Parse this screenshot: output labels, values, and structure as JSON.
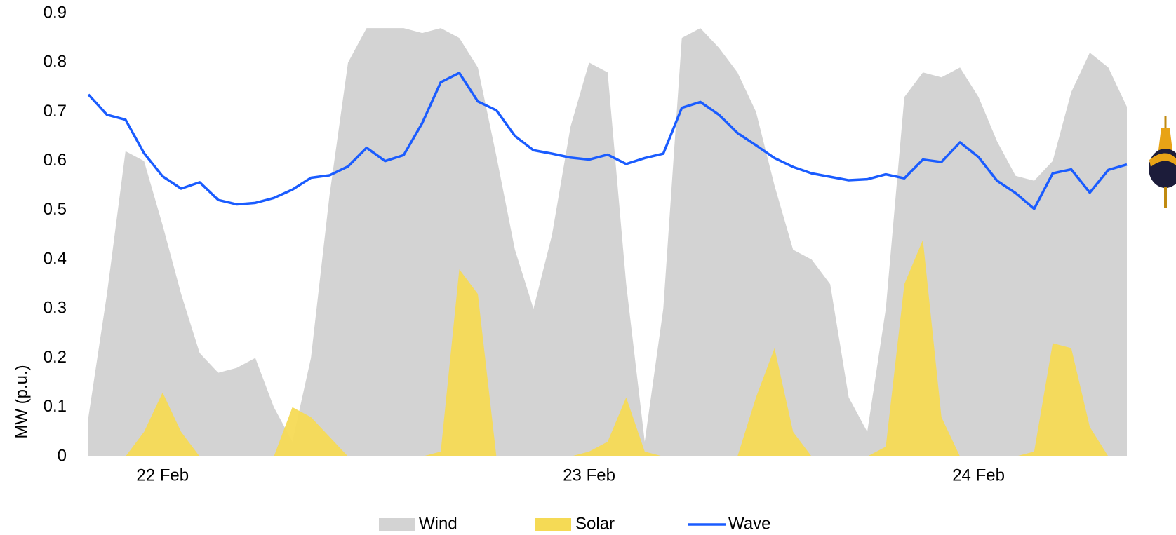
{
  "chart_data": {
    "type": "area",
    "y_label": "MW (p.u.)",
    "categories": [
      null,
      null,
      null,
      null,
      "22 Feb",
      null,
      null,
      null,
      null,
      null,
      null,
      null,
      null,
      null,
      null,
      null,
      null,
      null,
      null,
      null,
      null,
      null,
      null,
      null,
      null,
      null,
      null,
      "23 Feb",
      null,
      null,
      null,
      null,
      null,
      null,
      null,
      null,
      null,
      null,
      null,
      null,
      null,
      null,
      null,
      null,
      null,
      null,
      null,
      null,
      "24 Feb",
      null,
      null,
      null,
      null,
      null,
      null,
      null,
      null
    ],
    "ylim": [
      0,
      0.9
    ],
    "yticks": [
      0,
      0.1,
      0.2,
      0.3,
      0.4,
      0.5,
      0.6,
      0.7,
      0.8,
      0.9
    ],
    "grid": false,
    "legend": "bottom",
    "series": [
      {
        "name": "Wind",
        "color": "#d3d3d3",
        "style": "area",
        "values": [
          0.08,
          0.33,
          0.62,
          0.6,
          0.47,
          0.33,
          0.21,
          0.17,
          0.18,
          0.2,
          0.1,
          0.03,
          0.2,
          0.53,
          0.8,
          0.87,
          0.87,
          0.87,
          0.86,
          0.87,
          0.85,
          0.79,
          0.61,
          0.42,
          0.3,
          0.45,
          0.67,
          0.8,
          0.78,
          0.35,
          0.03,
          0.3,
          0.85,
          0.87,
          0.83,
          0.78,
          0.7,
          0.55,
          0.42,
          0.4,
          0.35,
          0.12,
          0.05,
          0.3,
          0.73,
          0.78,
          0.77,
          0.79,
          0.73,
          0.64,
          0.57,
          0.56,
          0.6,
          0.74,
          0.82,
          0.79,
          0.71
        ]
      },
      {
        "name": "Solar",
        "color": "#f5da55",
        "style": "area",
        "values": [
          0,
          0,
          0,
          0.05,
          0.13,
          0.05,
          0,
          0,
          0,
          0,
          0,
          0.1,
          0.08,
          0.04,
          0,
          0,
          0,
          0,
          0,
          0.01,
          0.38,
          0.33,
          0,
          0,
          0,
          0,
          0,
          0.01,
          0.03,
          0.12,
          0.01,
          0,
          0,
          0,
          0,
          0,
          0.12,
          0.22,
          0.05,
          0,
          0,
          0,
          0,
          0.02,
          0.35,
          0.44,
          0.08,
          0,
          0,
          0,
          0,
          0.01,
          0.23,
          0.22,
          0.06,
          0,
          0
        ]
      },
      {
        "name": "Wave",
        "color": "#1a5cff",
        "style": "line",
        "values": [
          0.735,
          0.694,
          0.684,
          0.616,
          0.569,
          0.544,
          0.557,
          0.521,
          0.512,
          0.515,
          0.525,
          0.542,
          0.566,
          0.571,
          0.589,
          0.627,
          0.6,
          0.612,
          0.677,
          0.76,
          0.779,
          0.721,
          0.703,
          0.651,
          0.622,
          0.615,
          0.607,
          0.603,
          0.613,
          0.594,
          0.606,
          0.615,
          0.708,
          0.72,
          0.694,
          0.657,
          0.632,
          0.606,
          0.588,
          0.575,
          0.568,
          0.561,
          0.563,
          0.573,
          0.565,
          0.603,
          0.598,
          0.638,
          0.608,
          0.56,
          0.535,
          0.503,
          0.575,
          0.583,
          0.536,
          0.582,
          0.593
        ]
      }
    ]
  }
}
